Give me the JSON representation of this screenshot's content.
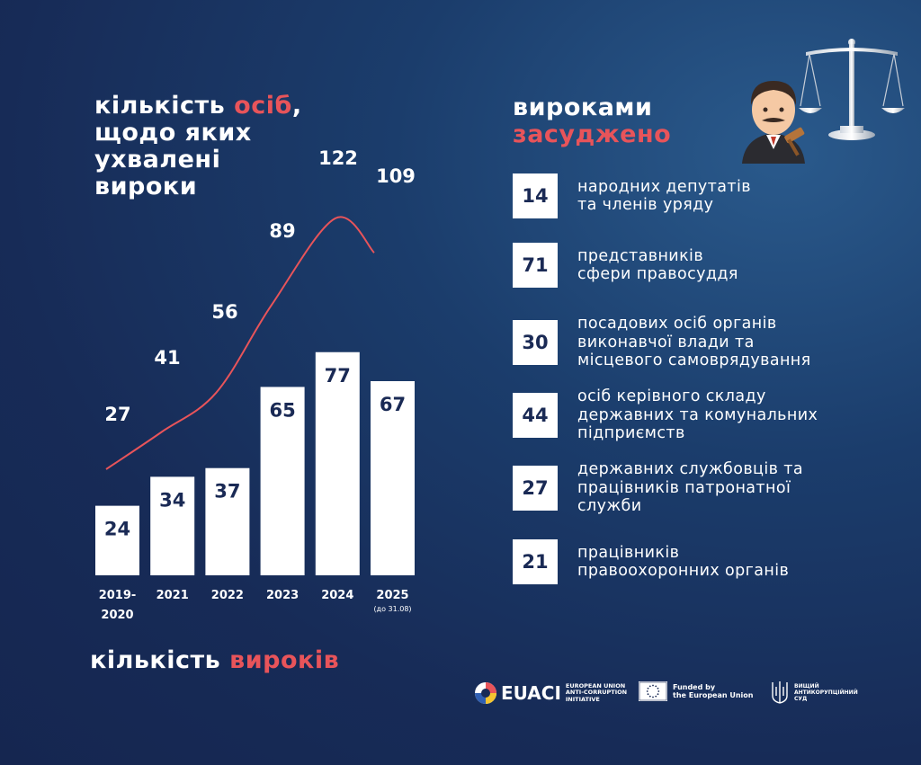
{
  "left_title": {
    "line1a": "кількість ",
    "line1b": "осіб",
    "line1c": ",",
    "line2": "щодо яких",
    "line3": "ухвалені",
    "line4": "вироки"
  },
  "right_title": {
    "line1": "вироками",
    "line2": "засуджено"
  },
  "bottom_title": {
    "part1": "кількість ",
    "part2": "вироків"
  },
  "colors": {
    "accent": "#e8545a",
    "bar": "#ffffff",
    "curve": "#e8545a",
    "background": "#172b57",
    "dark_text": "#1a2a55"
  },
  "chart_data": {
    "type": "bar",
    "categories": [
      "2019-2020",
      "2021",
      "2022",
      "2023",
      "2024",
      "2025"
    ],
    "category_notes": [
      "",
      "",
      "",
      "",
      "",
      "(до 31.08)"
    ],
    "series": [
      {
        "name": "кількість вироків",
        "type": "bar",
        "values": [
          24,
          34,
          37,
          65,
          77,
          67
        ]
      },
      {
        "name": "кількість осіб, щодо яких ухвалені вироки",
        "type": "line",
        "values": [
          27,
          41,
          56,
          89,
          122,
          109
        ]
      }
    ]
  },
  "stats": [
    {
      "value": "14",
      "text": "народних депутатів\nта членів уряду"
    },
    {
      "value": "71",
      "text": "представників\nсфери правосуддя"
    },
    {
      "value": "30",
      "text": "посадових осіб органів\nвиконавчої влади та\nмісцевого самоврядування"
    },
    {
      "value": "44",
      "text": "осіб керівного складу\nдержавних та комунальних\nпідприємств"
    },
    {
      "value": "27",
      "text": "державних службовців та\nпрацівників патронатної\nслужби"
    },
    {
      "value": "21",
      "text": "працівників\nправоохоронних органів"
    }
  ],
  "logos": {
    "euaci_name": "EUACI",
    "euaci_sub": "EUROPEAN UNION\nANTI-CORRUPTION\nINITIATIVE",
    "eu_funded": "Funded by\nthe European Union",
    "court": "ВИЩИЙ\nАНТИКОРУПЦІЙНИЙ\nСУД"
  },
  "icons": {
    "scales": "scales-of-justice-icon",
    "judge": "judge-emoji-icon",
    "euaci": "euaci-logo-icon",
    "eu_flag": "eu-flag-icon",
    "trident": "trident-icon"
  }
}
